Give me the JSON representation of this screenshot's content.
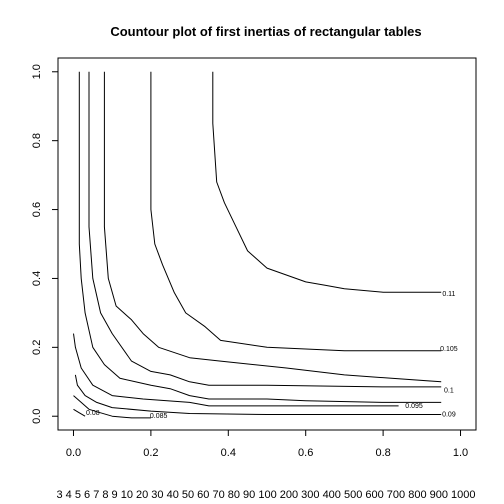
{
  "chart_data": {
    "type": "contour",
    "title": "Countour plot of first inertias of rectangular tables",
    "xlabel": "",
    "ylabel": "",
    "xlim": [
      -0.04,
      1.04
    ],
    "ylim": [
      -0.04,
      1.04
    ],
    "x_ticks": [
      "0.0",
      "0.2",
      "0.4",
      "0.6",
      "0.8",
      "1.0"
    ],
    "y_ticks": [
      "0.0",
      "0.2",
      "0.4",
      "0.6",
      "0.8",
      "1.0"
    ],
    "x_secondary_labels": "3 4 5 6 7 8 9 10 20 30 40 50 60 70 80 90 100 200 300 400 500 600 700 800 900 1000",
    "grid": false,
    "levels": [
      {
        "label": "0.08",
        "label_at": [
          0.05,
          0.01
        ],
        "points": [
          [
            0.0,
            0.02
          ],
          [
            0.015,
            0.01
          ],
          [
            0.03,
            0.0
          ]
        ]
      },
      {
        "label": "0.085",
        "label_at": [
          0.22,
          0.0
        ],
        "points": [
          [
            0.0,
            0.06
          ],
          [
            0.02,
            0.04
          ],
          [
            0.04,
            0.02
          ],
          [
            0.07,
            0.01
          ],
          [
            0.1,
            0.0
          ],
          [
            0.15,
            -0.005
          ],
          [
            0.2,
            -0.005
          ]
        ]
      },
      {
        "label": "0.09",
        "label_at": [
          0.97,
          0.005
        ],
        "points": [
          [
            0.005,
            0.12
          ],
          [
            0.01,
            0.09
          ],
          [
            0.03,
            0.06
          ],
          [
            0.06,
            0.04
          ],
          [
            0.1,
            0.025
          ],
          [
            0.2,
            0.015
          ],
          [
            0.3,
            0.008
          ],
          [
            0.5,
            0.005
          ],
          [
            0.7,
            0.005
          ],
          [
            0.95,
            0.005
          ]
        ]
      },
      {
        "label": "0.095",
        "label_at": [
          0.88,
          0.03
        ],
        "points": [
          [
            0.0,
            0.24
          ],
          [
            0.005,
            0.2
          ],
          [
            0.02,
            0.14
          ],
          [
            0.05,
            0.09
          ],
          [
            0.1,
            0.06
          ],
          [
            0.18,
            0.05
          ],
          [
            0.3,
            0.04
          ],
          [
            0.35,
            0.03
          ],
          [
            0.45,
            0.03
          ],
          [
            0.6,
            0.03
          ],
          [
            0.8,
            0.03
          ],
          [
            0.84,
            0.03
          ]
        ]
      },
      {
        "label": "0.1",
        "label_at": [
          0.97,
          0.075
        ],
        "points": [
          [
            0.015,
            1.0
          ],
          [
            0.015,
            0.5
          ],
          [
            0.02,
            0.4
          ],
          [
            0.03,
            0.3
          ],
          [
            0.05,
            0.2
          ],
          [
            0.08,
            0.15
          ],
          [
            0.12,
            0.11
          ],
          [
            0.2,
            0.09
          ],
          [
            0.25,
            0.08
          ],
          [
            0.3,
            0.06
          ],
          [
            0.35,
            0.05
          ],
          [
            0.5,
            0.05
          ],
          [
            0.6,
            0.045
          ],
          [
            0.8,
            0.04
          ],
          [
            0.95,
            0.04
          ]
        ]
      },
      {
        "label": "0.105",
        "label_at": [
          0.97,
          0.195
        ],
        "points": [
          [
            0.04,
            1.0
          ],
          [
            0.04,
            0.55
          ],
          [
            0.05,
            0.4
          ],
          [
            0.07,
            0.3
          ],
          [
            0.1,
            0.24
          ],
          [
            0.15,
            0.16
          ],
          [
            0.2,
            0.13
          ],
          [
            0.25,
            0.12
          ],
          [
            0.3,
            0.1
          ],
          [
            0.35,
            0.09
          ],
          [
            0.5,
            0.09
          ],
          [
            0.8,
            0.085
          ],
          [
            0.95,
            0.085
          ]
        ]
      },
      {
        "label": "0.11",
        "label_at": [
          0.97,
          0.355
        ],
        "points": [
          [
            0.08,
            1.0
          ],
          [
            0.08,
            0.55
          ],
          [
            0.09,
            0.4
          ],
          [
            0.11,
            0.32
          ],
          [
            0.15,
            0.28
          ],
          [
            0.18,
            0.24
          ],
          [
            0.22,
            0.2
          ],
          [
            0.3,
            0.17
          ],
          [
            0.38,
            0.16
          ],
          [
            0.55,
            0.14
          ],
          [
            0.7,
            0.12
          ],
          [
            0.95,
            0.1
          ]
        ]
      },
      {
        "label": "",
        "label_at": null,
        "points": [
          [
            0.2,
            1.0
          ],
          [
            0.2,
            0.6
          ],
          [
            0.21,
            0.5
          ],
          [
            0.23,
            0.44
          ],
          [
            0.26,
            0.36
          ],
          [
            0.29,
            0.3
          ],
          [
            0.34,
            0.26
          ],
          [
            0.38,
            0.22
          ],
          [
            0.5,
            0.2
          ],
          [
            0.7,
            0.19
          ],
          [
            0.95,
            0.19
          ]
        ]
      },
      {
        "label": "",
        "label_at": null,
        "points": [
          [
            0.36,
            1.0
          ],
          [
            0.36,
            0.85
          ],
          [
            0.37,
            0.68
          ],
          [
            0.39,
            0.62
          ],
          [
            0.42,
            0.55
          ],
          [
            0.45,
            0.48
          ],
          [
            0.5,
            0.43
          ],
          [
            0.6,
            0.39
          ],
          [
            0.65,
            0.38
          ],
          [
            0.7,
            0.37
          ],
          [
            0.8,
            0.36
          ],
          [
            0.95,
            0.36
          ]
        ]
      }
    ]
  }
}
